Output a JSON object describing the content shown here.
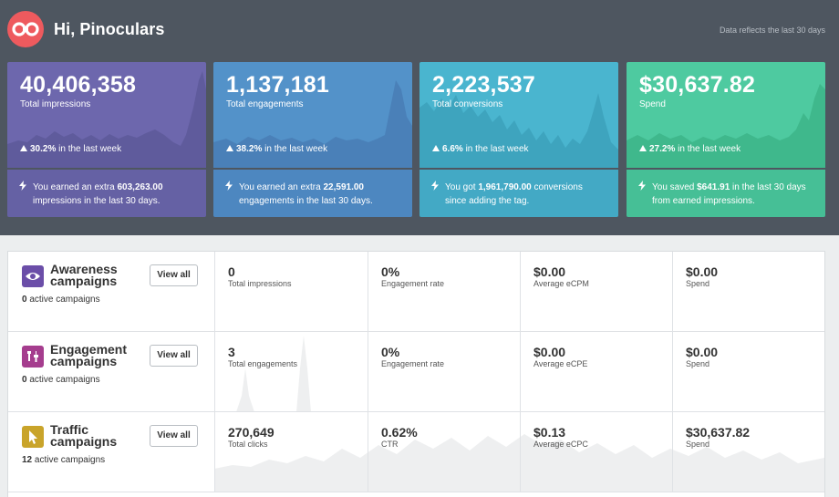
{
  "header": {
    "greeting": "Hi, Pinoculars",
    "data_note": "Data reflects the last 30 days"
  },
  "stats": [
    {
      "value": "40,406,358",
      "label": "Total impressions",
      "change": "30.2%",
      "change_suffix": "in the last week",
      "note_pre": "You earned an extra ",
      "note_bold": "603,263.00",
      "note_post": " impressions in the last 30 days.",
      "color_top": "#6d67ad",
      "color_bottom": "#6561a4",
      "wave": "#5f5b9c"
    },
    {
      "value": "1,137,181",
      "label": "Total engagements",
      "change": "38.2%",
      "change_suffix": "in the last week",
      "note_pre": "You earned an extra ",
      "note_bold": "22,591.00",
      "note_post": " engagements in the last 30 days.",
      "color_top": "#5392c9",
      "color_bottom": "#4d87c0",
      "wave": "#4a80b8"
    },
    {
      "value": "2,223,537",
      "label": "Total conversions",
      "change": "6.6%",
      "change_suffix": "in the last week",
      "note_pre": "You got ",
      "note_bold": "1,961,790.00",
      "note_post": " conversions since adding the tag.",
      "color_top": "#4ab5cf",
      "color_bottom": "#43a9c5",
      "wave": "#3ea4be"
    },
    {
      "value": "$30,637.82",
      "label": "Spend",
      "change": "27.2%",
      "change_suffix": "in the last week",
      "note_pre": "You saved ",
      "note_bold": "$641.91",
      "note_post": " in the last 30 days from earned impressions.",
      "color_top": "#4ecaa0",
      "color_bottom": "#46bf96",
      "wave": "#3fb88c"
    }
  ],
  "campaigns": [
    {
      "title": "Awareness campaigns",
      "count": "0",
      "count_suffix": " active campaigns",
      "view_all": "View all",
      "icon": "eye-icon",
      "icon_color": "#6b4ea8",
      "metrics": [
        {
          "value": "0",
          "label": "Total impressions"
        },
        {
          "value": "0%",
          "label": "Engagement rate"
        },
        {
          "value": "$0.00",
          "label": "Average eCPM"
        },
        {
          "value": "$0.00",
          "label": "Spend"
        }
      ]
    },
    {
      "title": "Engagement campaigns",
      "count": "0",
      "count_suffix": " active campaigns",
      "view_all": "View all",
      "icon": "pin-icon",
      "icon_color": "#a53d8e",
      "metrics": [
        {
          "value": "3",
          "label": "Total engagements"
        },
        {
          "value": "0%",
          "label": "Engagement rate"
        },
        {
          "value": "$0.00",
          "label": "Average eCPE"
        },
        {
          "value": "$0.00",
          "label": "Spend"
        }
      ]
    },
    {
      "title": "Traffic campaigns",
      "count": "12",
      "count_suffix": " active campaigns",
      "view_all": "View all",
      "icon": "cursor-icon",
      "icon_color": "#c9a42a",
      "metrics": [
        {
          "value": "270,649",
          "label": "Total clicks"
        },
        {
          "value": "0.62%",
          "label": "CTR"
        },
        {
          "value": "$0.13",
          "label": "Average eCPC"
        },
        {
          "value": "$30,637.82",
          "label": "Spend"
        }
      ]
    }
  ]
}
